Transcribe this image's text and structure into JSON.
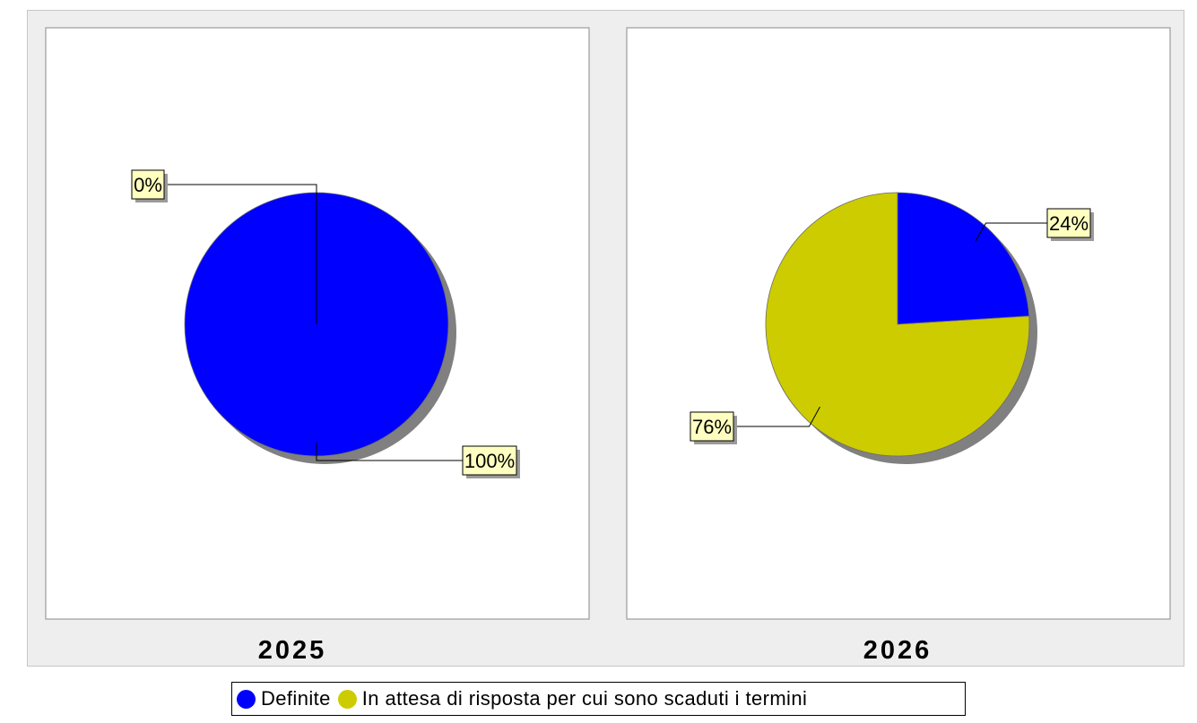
{
  "chart_data": [
    {
      "type": "pie",
      "title": "2025",
      "slices": [
        {
          "label": "Definite",
          "value": 100,
          "display": "100%",
          "color": "#0000ff"
        },
        {
          "label": "In attesa di risposta per cui sono scaduti i termini",
          "value": 0,
          "display": "0%",
          "color": "#cccc00"
        }
      ]
    },
    {
      "type": "pie",
      "title": "2026",
      "slices": [
        {
          "label": "Definite",
          "value": 24,
          "display": "24%",
          "color": "#0000ff"
        },
        {
          "label": "In attesa di risposta per cui sono scaduti i termini",
          "value": 76,
          "display": "76%",
          "color": "#cccc00"
        }
      ]
    }
  ],
  "legend": {
    "placement": "bottom",
    "items": [
      {
        "label": "Definite",
        "color": "#0000ff"
      },
      {
        "label": "In attesa di risposta per cui sono scaduti i termini",
        "color": "#cccc00"
      }
    ]
  },
  "colors": {
    "frame_background": "#eeeeee",
    "plot_background": "#ffffff",
    "label_box": "#ffffc0",
    "shadow": "#808080"
  }
}
